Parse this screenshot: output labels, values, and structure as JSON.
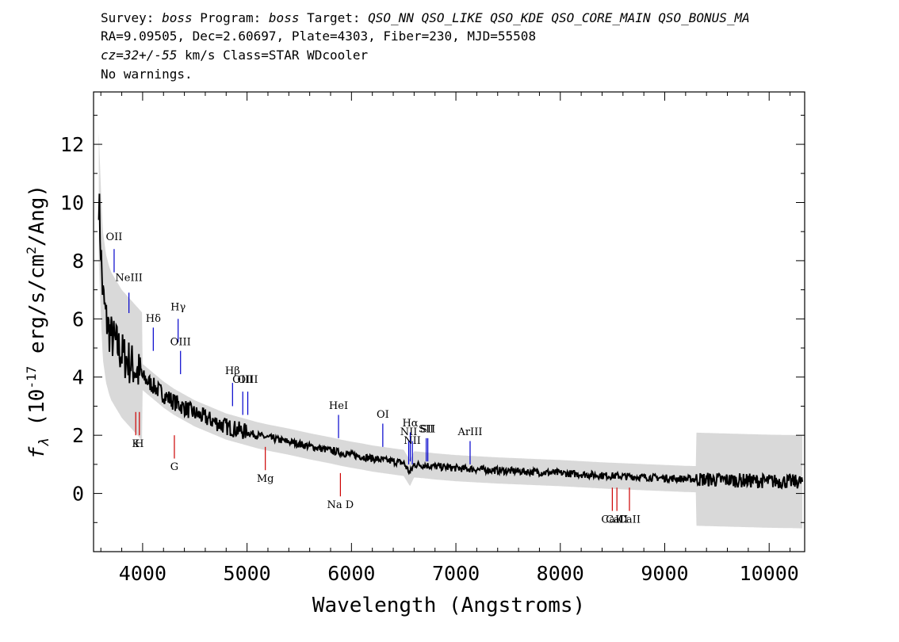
{
  "header": {
    "line1_parts": [
      {
        "t": "Survey: ",
        "i": false
      },
      {
        "t": "boss",
        "i": true
      },
      {
        "t": " Program: ",
        "i": false
      },
      {
        "t": "boss",
        "i": true
      },
      {
        "t": " Target: ",
        "i": false
      },
      {
        "t": "QSO_NN QSO_LIKE QSO_KDE QSO_CORE_MAIN QSO_BONUS_MA",
        "i": true
      }
    ],
    "line2": "RA=9.09505, Dec=2.60697, Plate=4303, Fiber=230, MJD=55508",
    "line3_parts": [
      {
        "t": "cz=32+/-55",
        "i": true
      },
      {
        "t": " km/s Class=STAR WDcooler",
        "i": false
      }
    ],
    "line4": "No warnings."
  },
  "chart_data": {
    "type": "line",
    "xlabel": "Wavelength (Angstroms)",
    "ylabel": "f_λ (10^-17 erg/s/cm^2/Ang)",
    "xlim": [
      3530,
      10340
    ],
    "ylim": [
      -2.0,
      13.8
    ],
    "x_ticks": [
      4000,
      5000,
      6000,
      7000,
      8000,
      9000,
      10000
    ],
    "y_ticks": [
      0,
      2,
      4,
      6,
      8,
      10,
      12
    ],
    "grid": false,
    "series": [
      {
        "role": "flux",
        "color": "#000000",
        "x": [
          3580,
          3600,
          3620,
          3650,
          3680,
          3700,
          3750,
          3800,
          3850,
          3900,
          3950,
          4000,
          4100,
          4200,
          4300,
          4400,
          4500,
          4600,
          4700,
          4800,
          4900,
          5000,
          5100,
          5200,
          5300,
          5400,
          5500,
          5600,
          5700,
          5800,
          5900,
          6000,
          6100,
          6200,
          6300,
          6400,
          6500,
          6560,
          6600,
          6700,
          6800,
          6900,
          7000,
          7200,
          7400,
          7600,
          7800,
          8000,
          8200,
          8400,
          8600,
          8800,
          9000,
          9200,
          9400,
          9600,
          9800,
          10000,
          10200,
          10320
        ],
        "y": [
          10.2,
          8.3,
          6.8,
          6.0,
          5.6,
          5.4,
          5.1,
          4.8,
          4.6,
          4.4,
          4.2,
          4.0,
          3.7,
          3.4,
          3.15,
          2.95,
          2.75,
          2.6,
          2.45,
          2.3,
          2.2,
          2.1,
          2.0,
          1.92,
          1.85,
          1.78,
          1.7,
          1.62,
          1.55,
          1.48,
          1.4,
          1.33,
          1.27,
          1.2,
          1.15,
          1.1,
          1.05,
          0.7,
          1.0,
          0.97,
          0.93,
          0.9,
          0.87,
          0.83,
          0.79,
          0.76,
          0.73,
          0.7,
          0.66,
          0.62,
          0.59,
          0.56,
          0.53,
          0.5,
          0.48,
          0.46,
          0.44,
          0.42,
          0.41,
          0.4
        ]
      }
    ],
    "spectral_lines": [
      {
        "label": "OII",
        "x": 3727,
        "color": "#0000cc",
        "y0": 7.6,
        "y1": 8.4,
        "label_y": 8.7,
        "sub": true
      },
      {
        "label": "NeIII",
        "x": 3869,
        "color": "#0000cc",
        "y0": 6.2,
        "y1": 6.9,
        "label_y": 7.3,
        "sub": true
      },
      {
        "label": "Hδ",
        "x": 4102,
        "color": "#0000cc",
        "y0": 4.9,
        "y1": 5.7,
        "label_y": 5.9,
        "sub": false
      },
      {
        "label": "Hγ",
        "x": 4340,
        "color": "#0000cc",
        "y0": 5.2,
        "y1": 6.0,
        "label_y": 6.3,
        "sub": false
      },
      {
        "label": "OIII",
        "x": 4363,
        "color": "#0000cc",
        "y0": 4.1,
        "y1": 4.9,
        "label_y": 5.1,
        "sub": true
      },
      {
        "label": "Hβ",
        "x": 4861,
        "color": "#0000cc",
        "y0": 3.0,
        "y1": 3.8,
        "label_y": 4.1,
        "sub": false
      },
      {
        "label": "OIII",
        "x": 4959,
        "color": "#0000cc",
        "y0": 2.7,
        "y1": 3.5,
        "label_y": 3.8,
        "sub": true
      },
      {
        "label": "OIII",
        "x": 5007,
        "color": "#0000cc",
        "y0": 2.7,
        "y1": 3.5,
        "label_y": 3.8,
        "sub": true
      },
      {
        "label": "HeI",
        "x": 5876,
        "color": "#0000cc",
        "y0": 1.9,
        "y1": 2.7,
        "label_y": 2.9,
        "sub": true
      },
      {
        "label": "OI",
        "x": 6300,
        "color": "#0000cc",
        "y0": 1.6,
        "y1": 2.4,
        "label_y": 2.6,
        "sub": true
      },
      {
        "label": "NII",
        "x": 6548,
        "color": "#0000cc",
        "y0": 1.0,
        "y1": 1.8,
        "label_y": 2.0,
        "sub": true
      },
      {
        "label": "Hα",
        "x": 6563,
        "color": "#0000cc",
        "y0": 1.1,
        "y1": 2.1,
        "label_y": 2.3,
        "sub": false
      },
      {
        "label": "NII",
        "x": 6583,
        "color": "#0000cc",
        "y0": 1.0,
        "y1": 1.8,
        "label_y": 1.7,
        "sub": true
      },
      {
        "label": "SII",
        "x": 6716,
        "color": "#0000cc",
        "y0": 1.1,
        "y1": 1.9,
        "label_y": 2.1,
        "sub": true
      },
      {
        "label": "SII",
        "x": 6731,
        "color": "#0000cc",
        "y0": 1.1,
        "y1": 1.9,
        "label_y": 2.1,
        "sub": true
      },
      {
        "label": "ArIII",
        "x": 7136,
        "color": "#0000cc",
        "y0": 1.0,
        "y1": 1.8,
        "label_y": 2.0,
        "sub": true
      },
      {
        "label": "K",
        "x": 3934,
        "color": "#cc0000",
        "y0": 2.0,
        "y1": 2.8,
        "label_y": 1.6,
        "sub": false
      },
      {
        "label": "H",
        "x": 3969,
        "color": "#cc0000",
        "y0": 2.0,
        "y1": 2.8,
        "label_y": 1.6,
        "sub": false
      },
      {
        "label": "G",
        "x": 4304,
        "color": "#cc0000",
        "y0": 1.2,
        "y1": 2.0,
        "label_y": 0.8,
        "sub": false
      },
      {
        "label": "Mg",
        "x": 5175,
        "color": "#cc0000",
        "y0": 0.8,
        "y1": 1.6,
        "label_y": 0.4,
        "sub": false
      },
      {
        "label": "Na D",
        "x": 5894,
        "color": "#cc0000",
        "y0": -0.1,
        "y1": 0.7,
        "label_y": -0.5,
        "sub": false
      },
      {
        "label": "CaII",
        "x": 8498,
        "color": "#cc0000",
        "y0": -0.6,
        "y1": 0.2,
        "label_y": -1.0,
        "sub": true
      },
      {
        "label": "CaII",
        "x": 8542,
        "color": "#cc0000",
        "y0": -0.6,
        "y1": 0.2,
        "label_y": -1.0,
        "sub": true
      },
      {
        "label": "CaII",
        "x": 8662,
        "color": "#cc0000",
        "y0": -0.6,
        "y1": 0.2,
        "label_y": -1.0,
        "sub": true
      }
    ]
  }
}
